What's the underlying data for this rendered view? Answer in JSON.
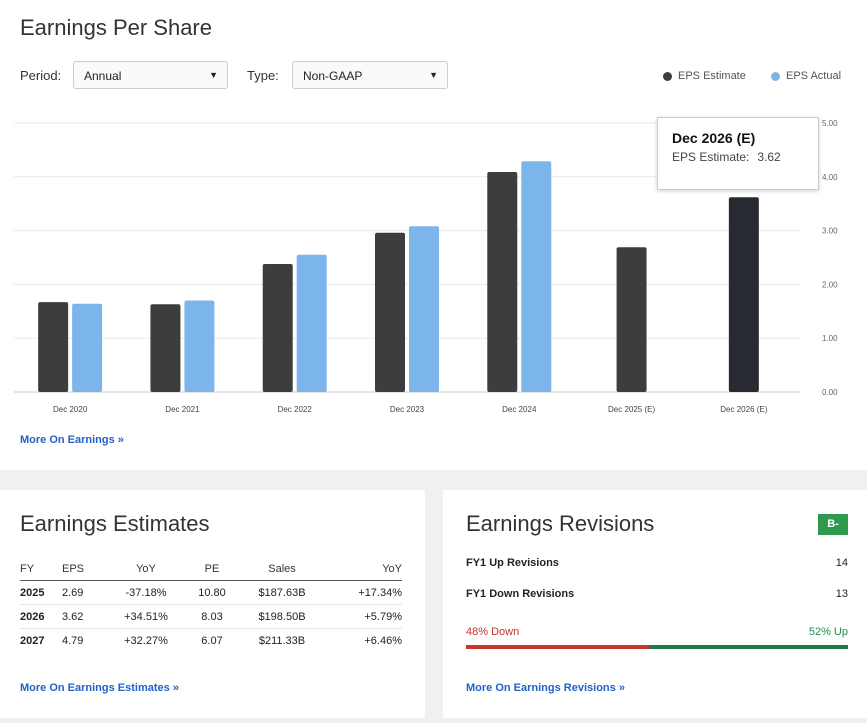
{
  "eps": {
    "title": "Earnings Per Share",
    "period_label": "Period:",
    "period_value": "Annual",
    "type_label": "Type:",
    "type_value": "Non-GAAP",
    "select_arrow": "▼",
    "legend": [
      {
        "name": "EPS Estimate",
        "color": "#3d3d40"
      },
      {
        "name": "EPS Actual",
        "color": "#7cb5ec"
      }
    ],
    "more_link": "More On Earnings »",
    "tooltip": {
      "title": "Dec 2026 (E)",
      "label": "EPS Estimate:",
      "value": "3.62"
    }
  },
  "chart_data": {
    "type": "bar",
    "categories": [
      "Dec 2020",
      "Dec 2021",
      "Dec 2022",
      "Dec 2023",
      "Dec 2024",
      "Dec 2025 (E)",
      "Dec 2026 (E)"
    ],
    "series": [
      {
        "name": "EPS Estimate",
        "values": [
          1.67,
          1.63,
          2.38,
          2.96,
          4.09,
          2.69,
          3.62
        ],
        "color": "#3d3d40"
      },
      {
        "name": "EPS Actual",
        "values": [
          1.64,
          1.7,
          2.55,
          3.08,
          4.29,
          null,
          null
        ],
        "color": "#7cb5ec"
      }
    ],
    "highlight_color": "#272a30",
    "y_ticks": [
      "0.00",
      "1.00",
      "2.00",
      "3.00",
      "4.00",
      "5.00"
    ],
    "ylim": [
      0,
      5
    ],
    "y_axis_side": "right",
    "grid": true
  },
  "estimates": {
    "title": "Earnings Estimates",
    "headers": [
      "FY",
      "EPS",
      "YoY",
      "PE",
      "Sales",
      "YoY"
    ],
    "rows": [
      {
        "fy": "2025",
        "eps": "2.69",
        "yoy": "-37.18%",
        "pe": "10.80",
        "sales": "$187.63B",
        "sales_yoy": "+17.34%"
      },
      {
        "fy": "2026",
        "eps": "3.62",
        "yoy": "+34.51%",
        "pe": "8.03",
        "sales": "$198.50B",
        "sales_yoy": "+5.79%"
      },
      {
        "fy": "2027",
        "eps": "4.79",
        "yoy": "+32.27%",
        "pe": "6.07",
        "sales": "$211.33B",
        "sales_yoy": "+6.46%"
      }
    ],
    "more_link": "More On Earnings Estimates »"
  },
  "revisions": {
    "title": "Earnings Revisions",
    "grade": "B-",
    "up_label": "FY1 Up Revisions",
    "up_value": "14",
    "down_label": "FY1 Down Revisions",
    "down_value": "13",
    "down_pct_label": "48% Down",
    "up_pct_label": "52% Up",
    "down_fraction": 0.48,
    "more_link": "More On Earnings Revisions »"
  }
}
